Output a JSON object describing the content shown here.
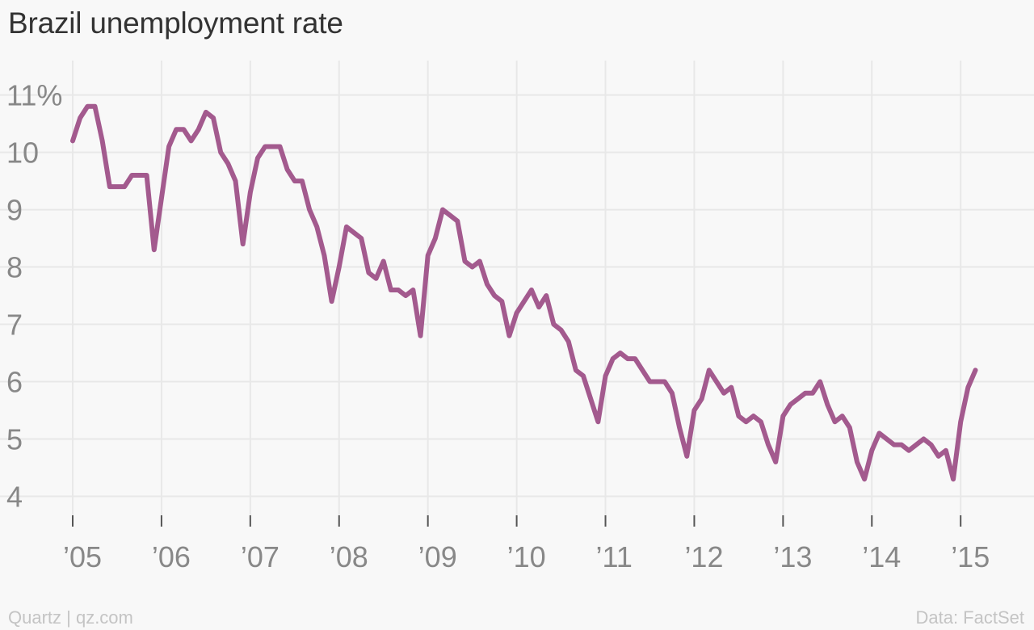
{
  "chart_data": {
    "type": "line",
    "title": "Brazil unemployment rate",
    "xlabel": "",
    "ylabel": "",
    "y_unit": "%",
    "ylim": [
      3.5,
      11.6
    ],
    "xlim": [
      "2005-01",
      "2015-06"
    ],
    "grid": true,
    "legend": "none",
    "y_ticks": [
      4,
      5,
      6,
      7,
      8,
      9,
      10,
      11
    ],
    "y_tick_labels": [
      "4",
      "5",
      "6",
      "7",
      "8",
      "9",
      "10",
      "11%"
    ],
    "x_ticks": [
      "2005-01",
      "2006-01",
      "2007-01",
      "2008-01",
      "2009-01",
      "2010-01",
      "2011-01",
      "2012-01",
      "2013-01",
      "2014-01",
      "2015-01"
    ],
    "x_tick_labels": [
      "’05",
      "’06",
      "’07",
      "’08",
      "’09",
      "’10",
      "’11",
      "’12",
      "’13",
      "’14",
      "’15"
    ],
    "series": [
      {
        "color": "#a35a8e",
        "x": [
          "2005-01",
          "2005-02",
          "2005-03",
          "2005-04",
          "2005-05",
          "2005-06",
          "2005-07",
          "2005-08",
          "2005-09",
          "2005-10",
          "2005-11",
          "2005-12",
          "2006-01",
          "2006-02",
          "2006-03",
          "2006-04",
          "2006-05",
          "2006-06",
          "2006-07",
          "2006-08",
          "2006-09",
          "2006-10",
          "2006-11",
          "2006-12",
          "2007-01",
          "2007-02",
          "2007-03",
          "2007-04",
          "2007-05",
          "2007-06",
          "2007-07",
          "2007-08",
          "2007-09",
          "2007-10",
          "2007-11",
          "2007-12",
          "2008-01",
          "2008-02",
          "2008-03",
          "2008-04",
          "2008-05",
          "2008-06",
          "2008-07",
          "2008-08",
          "2008-09",
          "2008-10",
          "2008-11",
          "2008-12",
          "2009-01",
          "2009-02",
          "2009-03",
          "2009-04",
          "2009-05",
          "2009-06",
          "2009-07",
          "2009-08",
          "2009-09",
          "2009-10",
          "2009-11",
          "2009-12",
          "2010-01",
          "2010-02",
          "2010-03",
          "2010-04",
          "2010-05",
          "2010-06",
          "2010-07",
          "2010-08",
          "2010-09",
          "2010-10",
          "2010-11",
          "2010-12",
          "2011-01",
          "2011-02",
          "2011-03",
          "2011-04",
          "2011-05",
          "2011-06",
          "2011-07",
          "2011-08",
          "2011-09",
          "2011-10",
          "2011-11",
          "2011-12",
          "2012-01",
          "2012-02",
          "2012-03",
          "2012-04",
          "2012-05",
          "2012-06",
          "2012-07",
          "2012-08",
          "2012-09",
          "2012-10",
          "2012-11",
          "2012-12",
          "2013-01",
          "2013-02",
          "2013-03",
          "2013-04",
          "2013-05",
          "2013-06",
          "2013-07",
          "2013-08",
          "2013-09",
          "2013-10",
          "2013-11",
          "2013-12",
          "2014-01",
          "2014-02",
          "2014-03",
          "2014-04",
          "2014-05",
          "2014-06",
          "2014-07",
          "2014-08",
          "2014-09",
          "2014-10",
          "2014-11",
          "2014-12",
          "2015-01",
          "2015-02",
          "2015-03"
        ],
        "values": [
          10.2,
          10.6,
          10.8,
          10.8,
          10.2,
          9.4,
          9.4,
          9.4,
          9.6,
          9.6,
          9.6,
          8.3,
          9.2,
          10.1,
          10.4,
          10.4,
          10.2,
          10.4,
          10.7,
          10.6,
          10.0,
          9.8,
          9.5,
          8.4,
          9.3,
          9.9,
          10.1,
          10.1,
          10.1,
          9.7,
          9.5,
          9.5,
          9.0,
          8.7,
          8.2,
          7.4,
          8.0,
          8.7,
          8.6,
          8.5,
          7.9,
          7.8,
          8.1,
          7.6,
          7.6,
          7.5,
          7.6,
          6.8,
          8.2,
          8.5,
          9.0,
          8.9,
          8.8,
          8.1,
          8.0,
          8.1,
          7.7,
          7.5,
          7.4,
          6.8,
          7.2,
          7.4,
          7.6,
          7.3,
          7.5,
          7.0,
          6.9,
          6.7,
          6.2,
          6.1,
          5.7,
          5.3,
          6.1,
          6.4,
          6.5,
          6.4,
          6.4,
          6.2,
          6.0,
          6.0,
          6.0,
          5.8,
          5.2,
          4.7,
          5.5,
          5.7,
          6.2,
          6.0,
          5.8,
          5.9,
          5.4,
          5.3,
          5.4,
          5.3,
          4.9,
          4.6,
          5.4,
          5.6,
          5.7,
          5.8,
          5.8,
          6.0,
          5.6,
          5.3,
          5.4,
          5.2,
          4.6,
          4.3,
          4.8,
          5.1,
          5.0,
          4.9,
          4.9,
          4.8,
          4.9,
          5.0,
          4.9,
          4.7,
          4.8,
          4.3,
          5.3,
          5.9,
          6.2
        ]
      }
    ]
  },
  "footer": {
    "source_left": "Quartz | qz.com",
    "source_right": "Data: FactSet"
  }
}
